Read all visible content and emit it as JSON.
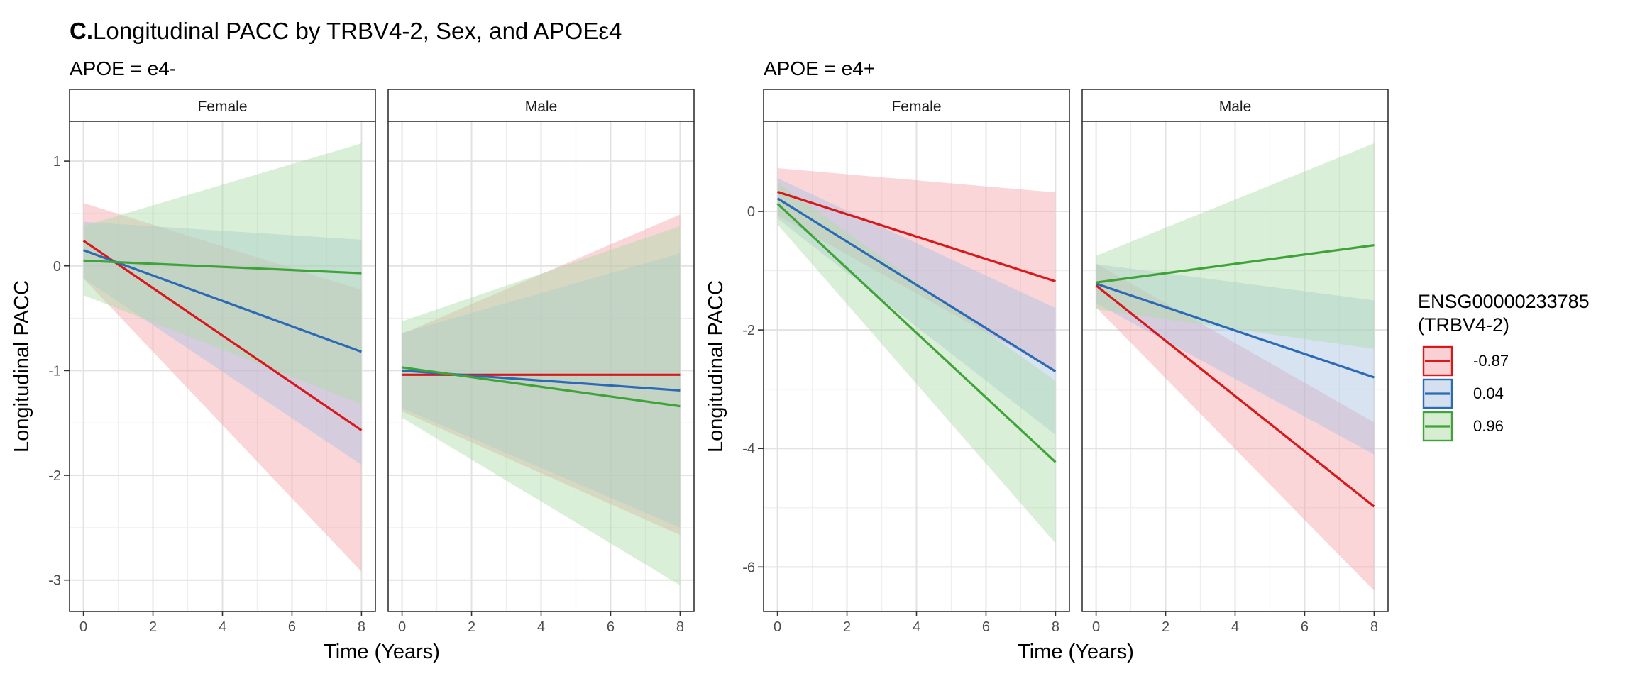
{
  "chart_data": {
    "type": "line",
    "title_prefix": "C.",
    "title": "Longitudinal PACC by TRBV4-2, Sex, and APOEε4",
    "legend": {
      "title_line1": "ENSG00000233785",
      "title_line2": "(TRBV4-2)",
      "placement": "right",
      "entries": [
        {
          "label": "-0.87",
          "color": "#d7191c",
          "fill": "#f4a3ab"
        },
        {
          "label": "0.04",
          "color": "#2c6bb4",
          "fill": "#a9c2e2"
        },
        {
          "label": "0.96",
          "color": "#3fa33a",
          "fill": "#addca6"
        }
      ]
    },
    "grid": true,
    "panels": [
      {
        "subtitle": "APOE = e4-",
        "xlabel": "Time (Years)",
        "ylabel": "Longitudinal PACC",
        "xlim": [
          -0.4,
          8.4
        ],
        "ylim": [
          -3.3,
          1.38
        ],
        "xticks": [
          0,
          2,
          4,
          6,
          8
        ],
        "yticks": [
          1,
          0,
          -1,
          -2,
          -3
        ],
        "ytick_labels": [
          "1",
          "0",
          "-1",
          "-2",
          "-3"
        ],
        "facets": [
          {
            "strip": "Female",
            "series": [
              {
                "name": "-0.87",
                "x": [
                  0,
                  8
                ],
                "y": [
                  0.24,
                  -1.57
                ],
                "lo": [
                  -0.12,
                  -2.92
                ],
                "hi": [
                  0.6,
                  -0.23
                ]
              },
              {
                "name": "0.04",
                "x": [
                  0,
                  8
                ],
                "y": [
                  0.15,
                  -0.82
                ],
                "lo": [
                  -0.12,
                  -1.9
                ],
                "hi": [
                  0.42,
                  0.25
                ]
              },
              {
                "name": "0.96",
                "x": [
                  0,
                  8
                ],
                "y": [
                  0.05,
                  -0.07
                ],
                "lo": [
                  -0.28,
                  -1.32
                ],
                "hi": [
                  0.38,
                  1.17
                ]
              }
            ]
          },
          {
            "strip": "Male",
            "series": [
              {
                "name": "-0.87",
                "x": [
                  0,
                  8
                ],
                "y": [
                  -1.04,
                  -1.04
                ],
                "lo": [
                  -1.39,
                  -2.57
                ],
                "hi": [
                  -0.65,
                  0.49
                ]
              },
              {
                "name": "0.04",
                "x": [
                  0,
                  8
                ],
                "y": [
                  -1.0,
                  -1.19
                ],
                "lo": [
                  -1.36,
                  -2.5
                ],
                "hi": [
                  -0.64,
                  0.12
                ]
              },
              {
                "name": "0.96",
                "x": [
                  0,
                  8
                ],
                "y": [
                  -0.97,
                  -1.34
                ],
                "lo": [
                  -1.45,
                  -3.05
                ],
                "hi": [
                  -0.53,
                  0.38
                ]
              }
            ]
          }
        ]
      },
      {
        "subtitle": "APOE = e4+",
        "xlabel": "Time (Years)",
        "ylabel": "Longitudinal PACC",
        "xlim": [
          -0.4,
          8.4
        ],
        "ylim": [
          -6.75,
          1.52
        ],
        "xticks": [
          0,
          2,
          4,
          6,
          8
        ],
        "yticks": [
          0,
          -2,
          -4,
          -6
        ],
        "ytick_labels": [
          "0",
          "-2",
          "-4",
          "-6"
        ],
        "facets": [
          {
            "strip": "Female",
            "series": [
              {
                "name": "-0.87",
                "x": [
                  0,
                  8
                ],
                "y": [
                  0.33,
                  -1.18
                ],
                "lo": [
                  -0.07,
                  -2.7
                ],
                "hi": [
                  0.73,
                  0.32
                ]
              },
              {
                "name": "0.04",
                "x": [
                  0,
                  8
                ],
                "y": [
                  0.22,
                  -2.7
                ],
                "lo": [
                  -0.12,
                  -3.77
                ],
                "hi": [
                  0.56,
                  -1.63
                ]
              },
              {
                "name": "0.96",
                "x": [
                  0,
                  8
                ],
                "y": [
                  0.13,
                  -4.23
                ],
                "lo": [
                  -0.22,
                  -5.6
                ],
                "hi": [
                  0.48,
                  -2.86
                ]
              }
            ]
          },
          {
            "strip": "Male",
            "series": [
              {
                "name": "-0.87",
                "x": [
                  0,
                  8
                ],
                "y": [
                  -1.25,
                  -4.98
                ],
                "lo": [
                  -1.62,
                  -6.4
                ],
                "hi": [
                  -0.88,
                  -3.56
                ]
              },
              {
                "name": "0.04",
                "x": [
                  0,
                  8
                ],
                "y": [
                  -1.22,
                  -2.8
                ],
                "lo": [
                  -1.55,
                  -4.1
                ],
                "hi": [
                  -0.89,
                  -1.5
                ]
              },
              {
                "name": "0.96",
                "x": [
                  0,
                  8
                ],
                "y": [
                  -1.2,
                  -0.57
                ],
                "lo": [
                  -1.65,
                  -2.32
                ],
                "hi": [
                  -0.75,
                  1.15
                ]
              }
            ]
          }
        ]
      }
    ]
  }
}
